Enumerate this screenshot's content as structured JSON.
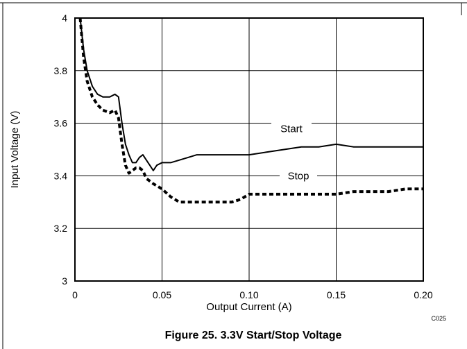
{
  "chart_data": {
    "type": "line",
    "title": "",
    "xlabel": "Output Current (A)",
    "ylabel": "Input Voltage (V)",
    "xlim": [
      0,
      0.2
    ],
    "ylim": [
      3,
      4
    ],
    "x_ticks": [
      "0",
      "0.05",
      "0.10",
      "0.15",
      "0.20"
    ],
    "y_ticks": [
      "3",
      "3.2",
      "3.4",
      "3.6",
      "3.8",
      "4"
    ],
    "grid": true,
    "series": [
      {
        "name": "Start",
        "style": "solid",
        "x": [
          0.003,
          0.005,
          0.007,
          0.01,
          0.013,
          0.016,
          0.02,
          0.023,
          0.025,
          0.027,
          0.029,
          0.031,
          0.033,
          0.035,
          0.037,
          0.039,
          0.041,
          0.043,
          0.045,
          0.047,
          0.05,
          0.055,
          0.06,
          0.065,
          0.07,
          0.08,
          0.09,
          0.1,
          0.11,
          0.12,
          0.13,
          0.14,
          0.15,
          0.16,
          0.17,
          0.18,
          0.19,
          0.2
        ],
        "values": [
          4.0,
          3.88,
          3.8,
          3.74,
          3.71,
          3.7,
          3.7,
          3.71,
          3.7,
          3.6,
          3.52,
          3.48,
          3.45,
          3.45,
          3.47,
          3.48,
          3.46,
          3.44,
          3.42,
          3.44,
          3.45,
          3.45,
          3.46,
          3.47,
          3.48,
          3.48,
          3.48,
          3.48,
          3.49,
          3.5,
          3.51,
          3.51,
          3.52,
          3.51,
          3.51,
          3.51,
          3.51,
          3.51
        ]
      },
      {
        "name": "Stop",
        "style": "dashed",
        "x": [
          0.003,
          0.005,
          0.007,
          0.01,
          0.013,
          0.016,
          0.02,
          0.023,
          0.025,
          0.027,
          0.029,
          0.031,
          0.033,
          0.035,
          0.037,
          0.039,
          0.041,
          0.045,
          0.05,
          0.055,
          0.06,
          0.065,
          0.07,
          0.08,
          0.09,
          0.095,
          0.1,
          0.11,
          0.12,
          0.13,
          0.14,
          0.15,
          0.16,
          0.17,
          0.18,
          0.19,
          0.2
        ],
        "values": [
          4.0,
          3.85,
          3.76,
          3.7,
          3.67,
          3.65,
          3.64,
          3.65,
          3.62,
          3.52,
          3.44,
          3.41,
          3.42,
          3.43,
          3.43,
          3.42,
          3.39,
          3.37,
          3.35,
          3.32,
          3.3,
          3.3,
          3.3,
          3.3,
          3.3,
          3.31,
          3.33,
          3.33,
          3.33,
          3.33,
          3.33,
          3.33,
          3.34,
          3.34,
          3.34,
          3.35,
          3.35
        ]
      }
    ],
    "annotations": [
      "Start",
      "Stop"
    ]
  },
  "figure": {
    "code": "C025",
    "caption": "Figure 25. 3.3V Start/Stop Voltage"
  }
}
